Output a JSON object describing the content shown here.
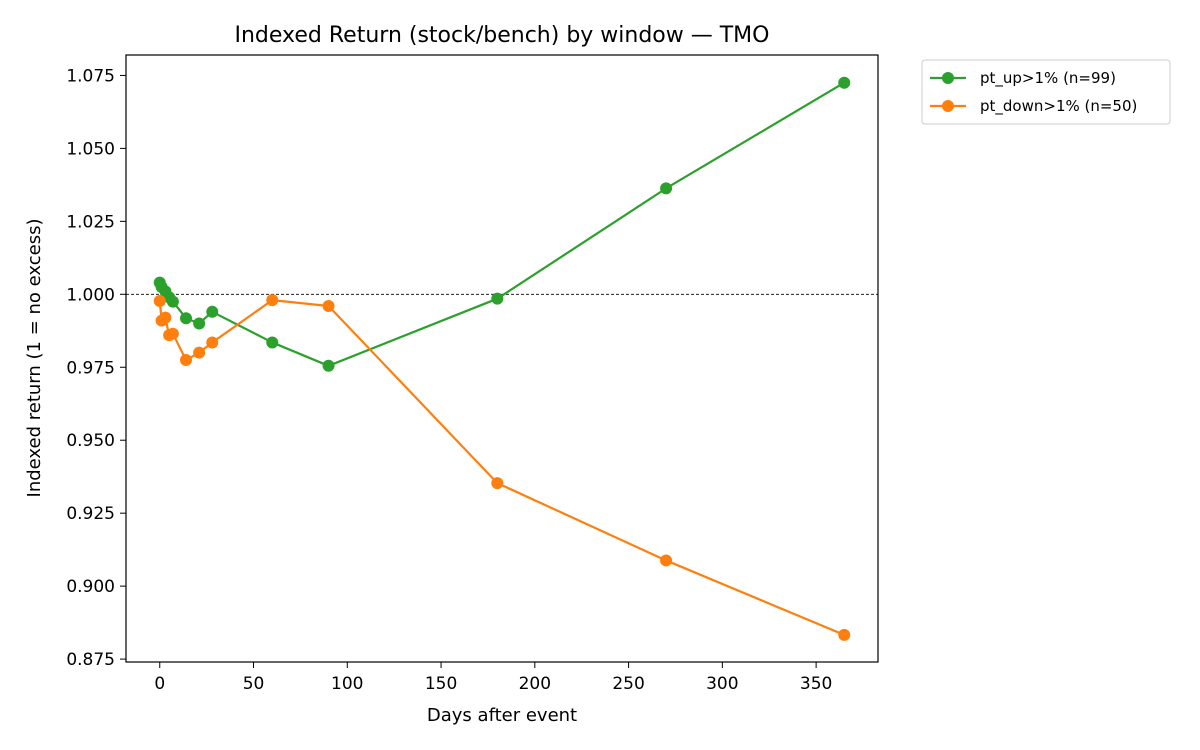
{
  "chart_data": {
    "type": "line",
    "title": "Indexed Return (stock/bench) by window — TMO",
    "xlabel": "Days after event",
    "ylabel": "Indexed return (1 = no excess)",
    "xlim": [
      -18,
      383
    ],
    "ylim": [
      0.874,
      1.082
    ],
    "xticks": [
      0,
      50,
      100,
      150,
      200,
      250,
      300,
      350
    ],
    "xtick_labels": [
      "0",
      "50",
      "100",
      "150",
      "200",
      "250",
      "300",
      "350"
    ],
    "yticks": [
      0.875,
      0.9,
      0.925,
      0.95,
      0.975,
      1.0,
      1.025,
      1.05,
      1.075
    ],
    "ytick_labels": [
      "0.875",
      "0.900",
      "0.925",
      "0.950",
      "0.975",
      "1.000",
      "1.025",
      "1.050",
      "1.075"
    ],
    "reference_line": {
      "y": 1.0,
      "style": "dashed",
      "color": "#000000"
    },
    "grid": false,
    "legend_position": "outside-top-right",
    "series": [
      {
        "name": "pt_up>1% (n=99)",
        "color": "#2ca02c",
        "x": [
          0,
          1,
          3,
          5,
          7,
          14,
          21,
          28,
          60,
          90,
          180,
          270,
          365
        ],
        "y": [
          1.004,
          1.0025,
          1.001,
          0.999,
          0.9975,
          0.9918,
          0.99,
          0.994,
          0.9835,
          0.9755,
          0.9985,
          1.0363,
          1.0725
        ]
      },
      {
        "name": "pt_down>1% (n=50)",
        "color": "#ff7f0e",
        "x": [
          0,
          1,
          3,
          5,
          7,
          14,
          21,
          28,
          60,
          90,
          180,
          270,
          365
        ],
        "y": [
          0.9977,
          0.991,
          0.992,
          0.986,
          0.9865,
          0.9775,
          0.98,
          0.9835,
          0.998,
          0.996,
          0.9353,
          0.9088,
          0.8833
        ]
      }
    ]
  }
}
